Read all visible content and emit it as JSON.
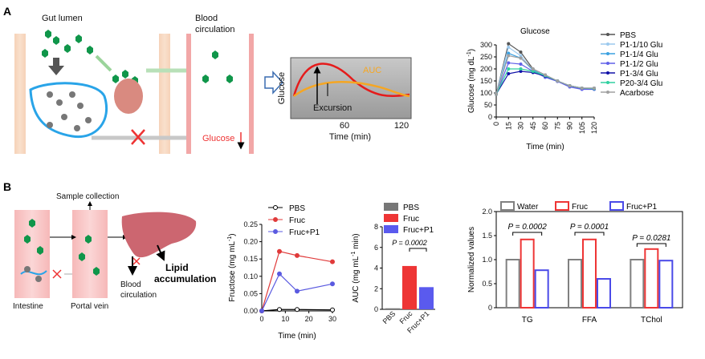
{
  "panels": {
    "a": "A",
    "b": "B"
  },
  "schematic_a": {
    "gut_lumen": "Gut lumen",
    "blood_line1": "Blood",
    "blood_line2": "circulation",
    "glucose_label": "Glucose",
    "inset_ylabel": "Glucose",
    "inset_xlabel": "Time (min)",
    "inset_ticks": [
      "60",
      "120"
    ],
    "auc": "AUC",
    "excursion": "Excursion",
    "down_arrow": "↓"
  },
  "schematic_b": {
    "sample_collection": "Sample collection",
    "intestine": "Intestine",
    "portal_vein": "Portal vein",
    "lipid_line1": "Lipid",
    "lipid_line2": "accumulation",
    "blood_line1": "Blood",
    "blood_line2": "circulation"
  },
  "chart_data": [
    {
      "type": "line",
      "title": "Glucose",
      "xlabel": "Time (min)",
      "ylabel": "Glucose (mg dL",
      "ylabel_sup": "-1",
      "ylabel_end": ")",
      "x": [
        0,
        15,
        30,
        45,
        60,
        75,
        90,
        105,
        120
      ],
      "ylim": [
        0,
        300
      ],
      "yticks": [
        "0",
        "50",
        "100",
        "150",
        "200",
        "250",
        "300"
      ],
      "xticks": [
        "0",
        "15",
        "30",
        "45",
        "60",
        "75",
        "90",
        "105",
        "120"
      ],
      "legend_position": "right",
      "series": [
        {
          "name": "PBS",
          "color": "#555555",
          "values": [
            95,
            305,
            270,
            200,
            175,
            150,
            130,
            120,
            120
          ]
        },
        {
          "name": "P1-1/10 Glu",
          "color": "#9cc9ee",
          "values": [
            95,
            290,
            255,
            195,
            175,
            150,
            130,
            120,
            120
          ]
        },
        {
          "name": "P1-1/4 Glu",
          "color": "#3aa0e0",
          "values": [
            95,
            265,
            245,
            195,
            170,
            150,
            128,
            118,
            118
          ]
        },
        {
          "name": "P1-1/2 Glu",
          "color": "#6060e8",
          "values": [
            95,
            225,
            220,
            190,
            165,
            148,
            125,
            115,
            115
          ]
        },
        {
          "name": "P1-3/4 Glu",
          "color": "#1010a8",
          "values": [
            95,
            180,
            190,
            185,
            170,
            150,
            130,
            120,
            118
          ]
        },
        {
          "name": "P20-3/4 Glu",
          "color": "#30d0a0",
          "values": [
            95,
            200,
            200,
            190,
            172,
            150,
            130,
            120,
            118
          ]
        },
        {
          "name": "Acarbose",
          "color": "#a0a0a0",
          "values": [
            95,
            255,
            245,
            200,
            175,
            150,
            130,
            120,
            120
          ]
        }
      ]
    },
    {
      "type": "line",
      "xlabel": "Time (min)",
      "ylabel": "Fructose (mg mL",
      "ylabel_sup": "-1",
      "ylabel_end": ")",
      "x": [
        0,
        7.5,
        15,
        30
      ],
      "ylim": [
        0,
        0.25
      ],
      "yticks": [
        "0.00",
        "0.05",
        "0.10",
        "0.15",
        "0.20",
        "0.25"
      ],
      "xticks": [
        "0",
        "10",
        "20",
        "30"
      ],
      "legend_position": "top-left",
      "series": [
        {
          "name": "PBS",
          "color": "#000000",
          "values": [
            0,
            0.004,
            0.004,
            0.003
          ]
        },
        {
          "name": "Fruc",
          "color": "#e03a3a",
          "values": [
            0,
            0.172,
            0.16,
            0.142
          ]
        },
        {
          "name": "Fruc+P1",
          "color": "#5a5ae0",
          "values": [
            0,
            0.107,
            0.057,
            0.078
          ]
        }
      ]
    },
    {
      "type": "bar",
      "ylabel": "AUC (mg mL",
      "ylabel_sup": "-1",
      "ylabel_end": " min)",
      "categories": [
        "PBS",
        "Fruc",
        "Fruc+P1"
      ],
      "values": [
        0.1,
        4.2,
        2.15
      ],
      "colors": [
        "#777777",
        "#ee3535",
        "#5a5aee"
      ],
      "ylim": [
        0,
        8
      ],
      "yticks": [
        "0",
        "2",
        "4",
        "6",
        "8"
      ],
      "annotation": "P = 0.0002",
      "legend_position": "top"
    },
    {
      "type": "bar",
      "ylabel": "Normalized values",
      "categories": [
        "TG",
        "FFA",
        "TChol"
      ],
      "series": [
        {
          "name": "Water",
          "color": "#808080",
          "values": [
            1.0,
            1.0,
            1.0
          ]
        },
        {
          "name": "Fruc",
          "color": "#ee3535",
          "values": [
            1.42,
            1.42,
            1.22
          ]
        },
        {
          "name": "Fruc+P1",
          "color": "#4a4ae8",
          "values": [
            0.78,
            0.6,
            0.98
          ]
        }
      ],
      "ylim": [
        0,
        2.0
      ],
      "yticks": [
        "0",
        "0.5",
        "1.0",
        "1.5",
        "2.0"
      ],
      "annotations": [
        "P = 0.0002",
        "P = 0.0001",
        "P = 0.0281"
      ],
      "legend_position": "top"
    }
  ]
}
